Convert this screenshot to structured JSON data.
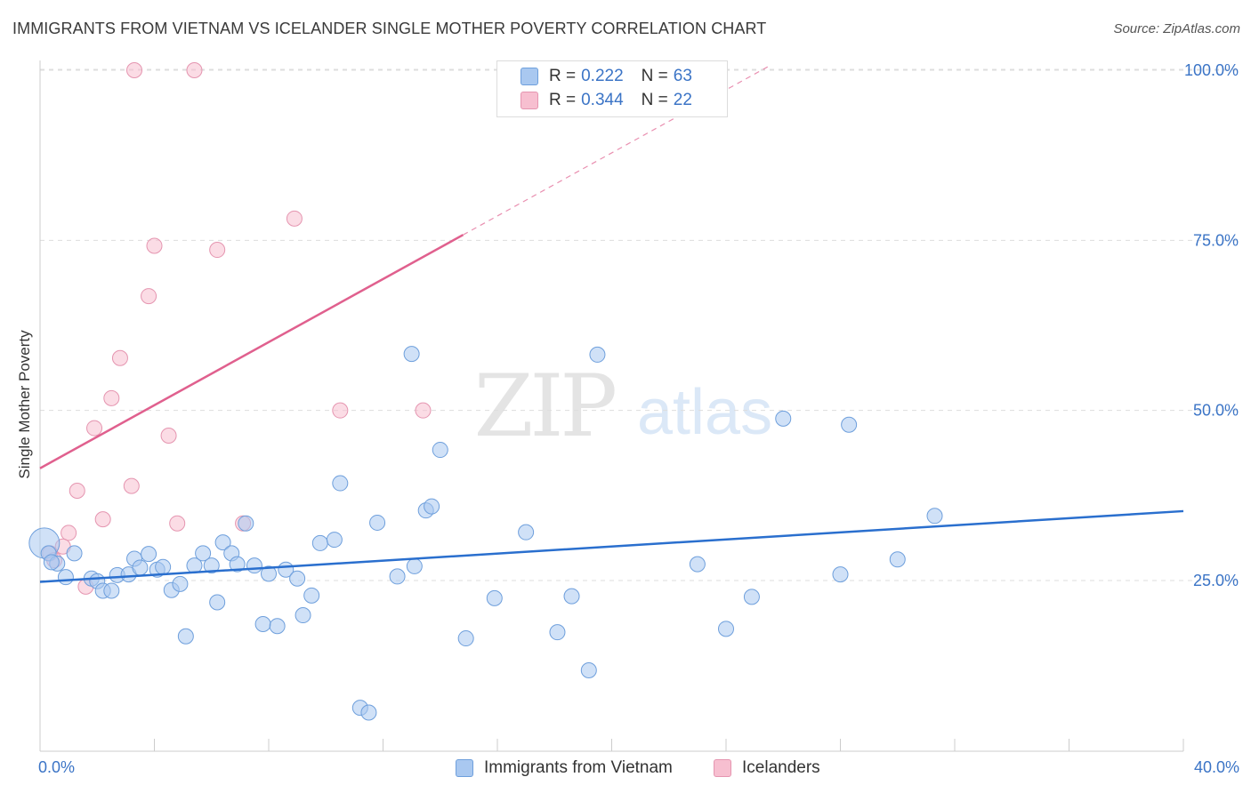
{
  "title": "IMMIGRANTS FROM VIETNAM VS ICELANDER SINGLE MOTHER POVERTY CORRELATION CHART",
  "source": "Source: ZipAtlas.com",
  "watermark": {
    "zip": "ZIP",
    "atlas": "atlas"
  },
  "legend_top": [
    {
      "r_label": "R =",
      "r_value": "0.222",
      "n_label": "N =",
      "n_value": "63"
    },
    {
      "r_label": "R =",
      "r_value": "0.344",
      "n_label": "N =",
      "n_value": "22"
    }
  ],
  "colors": {
    "blue_fill": "#a9c8f0",
    "blue_stroke": "#6e9fdc",
    "blue_line": "#2a6fce",
    "pink_fill": "#f7bfd0",
    "pink_stroke": "#e595b0",
    "pink_line": "#e0608e",
    "tick_text": "#3b74c6",
    "grid": "#dddddd"
  },
  "chart_data": {
    "type": "scatter",
    "title": "IMMIGRANTS FROM VIETNAM VS ICELANDER SINGLE MOTHER POVERTY CORRELATION CHART",
    "xlabel": "",
    "ylabel": "Single Mother Poverty",
    "xlim": [
      0,
      40
    ],
    "ylim": [
      0,
      102
    ],
    "x_tick_labels": [
      "0.0%",
      "40.0%"
    ],
    "y_ticks": [
      25,
      50,
      75,
      100
    ],
    "y_tick_labels": [
      "25.0%",
      "50.0%",
      "75.0%",
      "100.0%"
    ],
    "grid": true,
    "legend_position": "top-center",
    "series": [
      {
        "name": "Immigrants from Vietnam",
        "r": 0.222,
        "n": 63,
        "trend": {
          "x": [
            0,
            40
          ],
          "y": [
            24.8,
            35.2
          ],
          "style": "solid"
        },
        "points": [
          [
            0.15,
            30.5
          ],
          [
            0.3,
            29.0
          ],
          [
            0.6,
            27.5
          ],
          [
            0.9,
            25.5
          ],
          [
            1.2,
            29.0
          ],
          [
            1.8,
            25.3
          ],
          [
            2.0,
            24.9
          ],
          [
            2.2,
            23.5
          ],
          [
            2.5,
            23.5
          ],
          [
            2.7,
            25.8
          ],
          [
            3.1,
            25.9
          ],
          [
            3.3,
            28.2
          ],
          [
            3.5,
            26.9
          ],
          [
            3.8,
            28.9
          ],
          [
            4.1,
            26.6
          ],
          [
            4.3,
            27.0
          ],
          [
            4.6,
            23.6
          ],
          [
            4.9,
            24.5
          ],
          [
            5.1,
            16.8
          ],
          [
            5.4,
            27.2
          ],
          [
            5.7,
            29.0
          ],
          [
            6.0,
            27.2
          ],
          [
            6.2,
            21.8
          ],
          [
            6.4,
            30.6
          ],
          [
            6.7,
            29.0
          ],
          [
            6.9,
            27.4
          ],
          [
            7.2,
            33.4
          ],
          [
            7.5,
            27.2
          ],
          [
            7.8,
            18.6
          ],
          [
            8.0,
            26.0
          ],
          [
            8.3,
            18.3
          ],
          [
            8.6,
            26.6
          ],
          [
            9.0,
            25.3
          ],
          [
            9.2,
            19.9
          ],
          [
            9.5,
            22.8
          ],
          [
            9.8,
            30.5
          ],
          [
            10.3,
            31.0
          ],
          [
            10.5,
            39.3
          ],
          [
            11.2,
            6.3
          ],
          [
            11.5,
            5.6
          ],
          [
            11.8,
            33.5
          ],
          [
            12.5,
            25.6
          ],
          [
            13.0,
            58.3
          ],
          [
            13.1,
            27.1
          ],
          [
            13.5,
            35.3
          ],
          [
            13.7,
            35.9
          ],
          [
            14.0,
            44.2
          ],
          [
            14.9,
            16.5
          ],
          [
            15.9,
            22.4
          ],
          [
            17.0,
            32.1
          ],
          [
            18.1,
            17.4
          ],
          [
            18.6,
            22.7
          ],
          [
            19.2,
            11.8
          ],
          [
            19.5,
            58.2
          ],
          [
            23.0,
            27.4
          ],
          [
            24.0,
            17.9
          ],
          [
            24.9,
            22.6
          ],
          [
            26.0,
            48.8
          ],
          [
            28.0,
            25.9
          ],
          [
            28.3,
            47.9
          ],
          [
            30.0,
            28.1
          ],
          [
            31.3,
            34.5
          ],
          [
            0.4,
            27.7
          ]
        ]
      },
      {
        "name": "Icelanders",
        "r": 0.344,
        "n": 22,
        "trend": {
          "x": [
            0,
            14.8,
            25.5
          ],
          "y": [
            41.5,
            75.8,
            100.6
          ],
          "style": "solid-then-dashed"
        },
        "points": [
          [
            3.3,
            100.0
          ],
          [
            5.4,
            100.0
          ],
          [
            8.9,
            78.2
          ],
          [
            4.0,
            74.2
          ],
          [
            6.2,
            73.6
          ],
          [
            3.8,
            66.8
          ],
          [
            2.8,
            57.7
          ],
          [
            2.5,
            51.8
          ],
          [
            1.9,
            47.4
          ],
          [
            4.5,
            46.3
          ],
          [
            10.5,
            50.0
          ],
          [
            13.4,
            50.0
          ],
          [
            1.3,
            38.2
          ],
          [
            3.2,
            38.9
          ],
          [
            2.2,
            34.0
          ],
          [
            4.8,
            33.4
          ],
          [
            7.1,
            33.4
          ],
          [
            1.0,
            32.0
          ],
          [
            0.8,
            30.0
          ],
          [
            0.35,
            29.0
          ],
          [
            0.5,
            28.0
          ],
          [
            1.6,
            24.1
          ]
        ]
      }
    ]
  }
}
